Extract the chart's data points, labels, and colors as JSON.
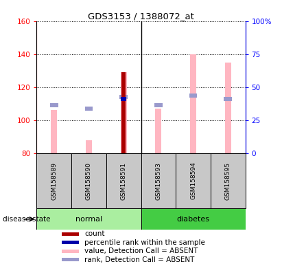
{
  "title": "GDS3153 / 1388072_at",
  "samples": [
    "GSM158589",
    "GSM158590",
    "GSM158591",
    "GSM158593",
    "GSM158594",
    "GSM158595"
  ],
  "groups": [
    "normal",
    "normal",
    "normal",
    "diabetes",
    "diabetes",
    "diabetes"
  ],
  "ylim": [
    80,
    160
  ],
  "y2lim": [
    0,
    100
  ],
  "yticks": [
    80,
    100,
    120,
    140,
    160
  ],
  "y2ticks": [
    0,
    25,
    50,
    75,
    100
  ],
  "y2ticklabels": [
    "0",
    "25",
    "50",
    "75",
    "100%"
  ],
  "value_absent": [
    106,
    88,
    129,
    107,
    140,
    135
  ],
  "rank_absent": [
    109,
    107,
    114,
    109,
    115,
    113
  ],
  "count_value": [
    null,
    null,
    129,
    null,
    null,
    null
  ],
  "percentile_value": [
    null,
    null,
    113,
    null,
    null,
    null
  ],
  "pink_color": "#FFB6C1",
  "lavender_color": "#9999CC",
  "red_color": "#AA0000",
  "blue_color": "#0000AA",
  "normal_color": "#AAEEA0",
  "diabetes_color": "#44CC44",
  "gray_color": "#C8C8C8",
  "legend_items": [
    {
      "label": "count",
      "color": "#AA0000"
    },
    {
      "label": "percentile rank within the sample",
      "color": "#0000AA"
    },
    {
      "label": "value, Detection Call = ABSENT",
      "color": "#FFB6C1"
    },
    {
      "label": "rank, Detection Call = ABSENT",
      "color": "#9999CC"
    }
  ]
}
